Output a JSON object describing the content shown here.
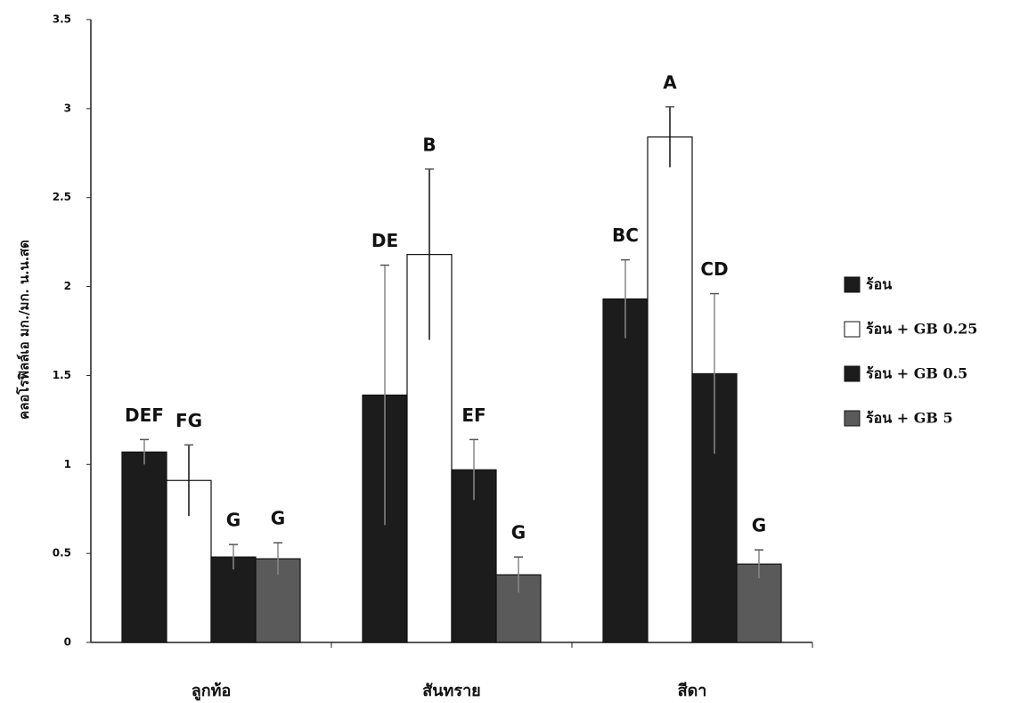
{
  "chart_data": {
    "type": "bar",
    "y_label": "คลอโรฟิลล์เอ มก./มก. น.น.สด",
    "categories": [
      "ลูกท้อ",
      "สันทราย",
      "สีดา"
    ],
    "series": [
      {
        "name": "ร้อน",
        "color": "#1c1c1c",
        "values": [
          1.07,
          1.39,
          1.93
        ],
        "errors": [
          0.07,
          0.73,
          0.22
        ],
        "letters": [
          "DEF",
          "DE",
          "BC"
        ]
      },
      {
        "name": "ร้อน + GB 0.25",
        "color": "#ffffff",
        "values": [
          0.91,
          2.18,
          2.84
        ],
        "errors": [
          0.2,
          0.48,
          0.17
        ],
        "letters": [
          "FG",
          "B",
          "A"
        ]
      },
      {
        "name": "ร้อน + GB 0.5",
        "color": "#1c1c1c",
        "values": [
          0.48,
          0.97,
          1.51
        ],
        "errors": [
          0.07,
          0.17,
          0.45
        ],
        "letters": [
          "G",
          "EF",
          "CD"
        ]
      },
      {
        "name": "ร้อน + GB 5",
        "color": "#5a5a5a",
        "values": [
          0.47,
          0.38,
          0.44
        ],
        "errors": [
          0.09,
          0.1,
          0.08
        ],
        "letters": [
          "G",
          "G",
          "G"
        ]
      }
    ],
    "ylim": [
      0,
      3.5
    ],
    "yticks": [
      0,
      0.5,
      1,
      1.5,
      2,
      2.5,
      3,
      3.5
    ],
    "grid": false
  }
}
